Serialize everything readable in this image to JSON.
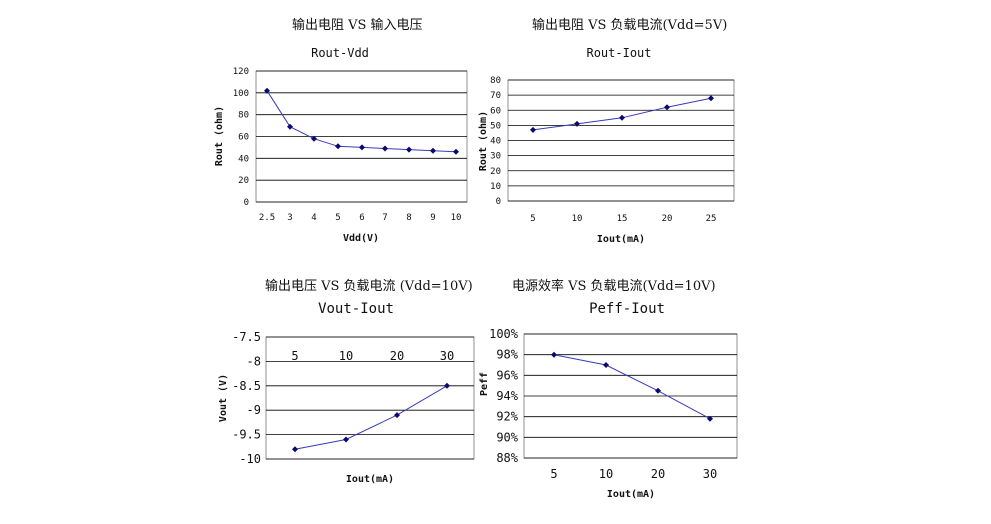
{
  "captions": {
    "c1": "输出电阻 VS 输入电压",
    "c2": "输出电阻 VS 负载电流(Vdd=5V)",
    "c3": "输出电压 VS 负载电流 (Vdd=10V)",
    "c4": "电源效率 VS 负载电流(Vdd=10V)"
  },
  "chart_data": [
    {
      "type": "line",
      "title": "Rout-Vdd",
      "xlabel": "Vdd(V)",
      "ylabel": "Rout (ohm)",
      "categories": [
        "2.5",
        "3",
        "4",
        "5",
        "6",
        "7",
        "8",
        "9",
        "10"
      ],
      "values": [
        102,
        69,
        58,
        51,
        50,
        49,
        48,
        47,
        46
      ],
      "ylim": [
        0,
        120
      ],
      "yticks": [
        0,
        20,
        40,
        60,
        80,
        100,
        120
      ],
      "yticklabels": [
        "0",
        "20",
        "40",
        "60",
        "80",
        "100",
        "120"
      ],
      "grid": true
    },
    {
      "type": "line",
      "title": "Rout-Iout",
      "xlabel": "Iout(mA)",
      "ylabel": "Rout (ohm)",
      "categories": [
        "5",
        "10",
        "15",
        "20",
        "25"
      ],
      "values": [
        47,
        51,
        55,
        62,
        68
      ],
      "ylim": [
        0,
        80
      ],
      "yticks": [
        0,
        10,
        20,
        30,
        40,
        50,
        60,
        70,
        80
      ],
      "yticklabels": [
        "0",
        "10",
        "20",
        "30",
        "40",
        "50",
        "60",
        "70",
        "80"
      ],
      "grid": true
    },
    {
      "type": "line",
      "title": "Vout-Iout",
      "xlabel": "Iout(mA)",
      "ylabel": "Vout (V)",
      "categories": [
        "5",
        "10",
        "20",
        "30"
      ],
      "values": [
        -9.8,
        -9.6,
        -9.1,
        -8.5
      ],
      "ylim": [
        -10,
        -7.5
      ],
      "yticks": [
        -10,
        -9.5,
        -9,
        -8.5,
        -8,
        -7.5
      ],
      "yticklabels": [
        "-10",
        "-9.5",
        "-9",
        "-8.5",
        "-8",
        "-7.5"
      ],
      "xaxis_position": "top",
      "grid": true
    },
    {
      "type": "line",
      "title": "Peff-Iout",
      "xlabel": "Iout(mA)",
      "ylabel": "Peff",
      "categories": [
        "5",
        "10",
        "20",
        "30"
      ],
      "values": [
        98,
        97,
        94.5,
        91.8
      ],
      "ylim": [
        88,
        100
      ],
      "yticks": [
        88,
        90,
        92,
        94,
        96,
        98,
        100
      ],
      "yticklabels": [
        "88%",
        "90%",
        "92%",
        "94%",
        "96%",
        "98%",
        "100%"
      ],
      "grid": true
    }
  ]
}
